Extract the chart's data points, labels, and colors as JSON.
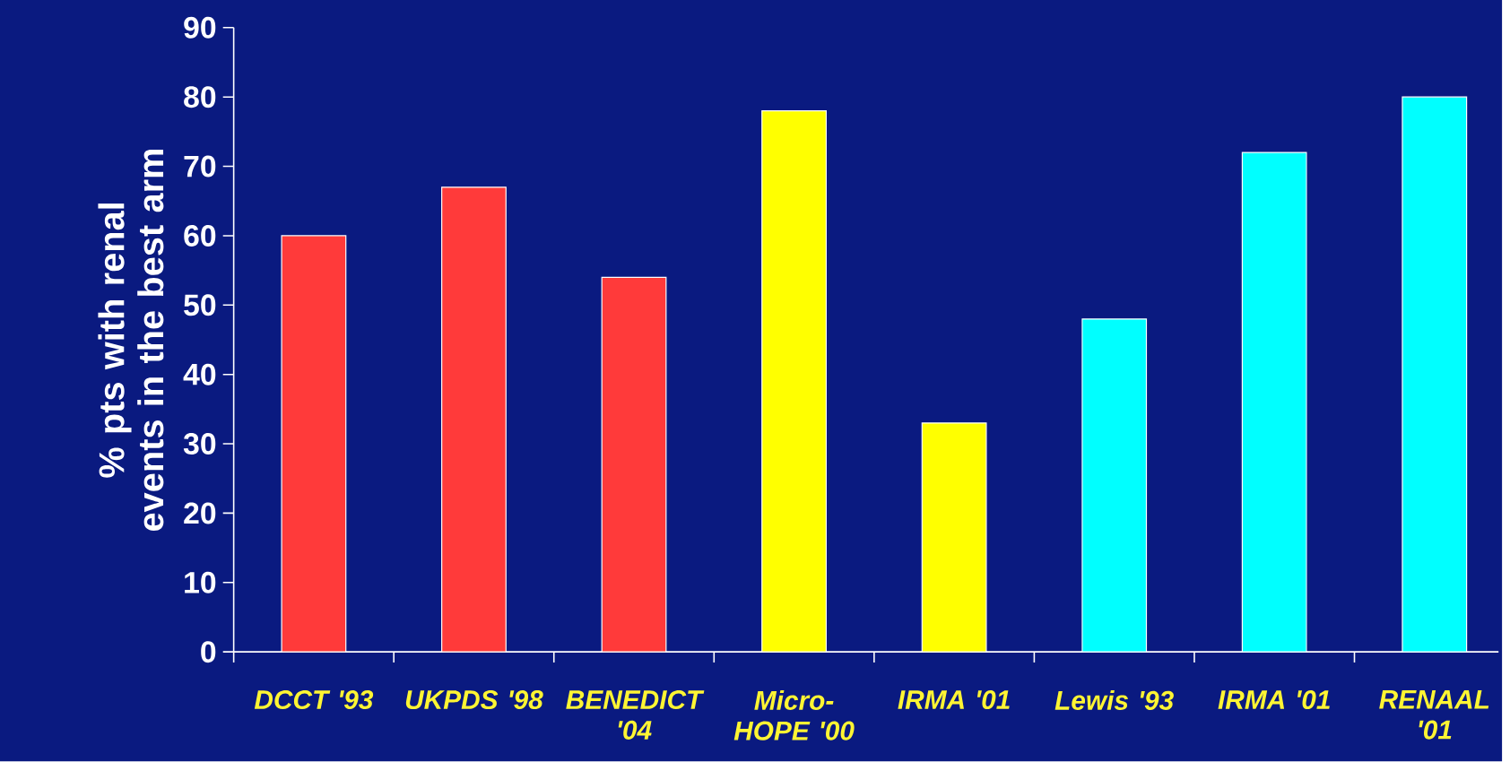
{
  "chart_data": {
    "type": "bar",
    "ylabel": "%  pts with renal events in the best arm",
    "categories": [
      "DCCT '93",
      "UKPDS '98",
      "BENEDICT '04",
      "Micro-HOPE '00",
      "IRMA '01",
      "Lewis '93",
      "IRMA '01",
      "RENAAL '01"
    ],
    "values": [
      60,
      67,
      54,
      78,
      33,
      48,
      72,
      80
    ],
    "colors": [
      "#ff3a3a",
      "#ff3a3a",
      "#ff3a3a",
      "#ffff00",
      "#ffff00",
      "#00ffff",
      "#00ffff",
      "#00ffff"
    ],
    "ylim": [
      0,
      90
    ],
    "yticks": [
      0,
      10,
      20,
      30,
      40,
      50,
      60,
      70,
      80,
      90
    ]
  }
}
